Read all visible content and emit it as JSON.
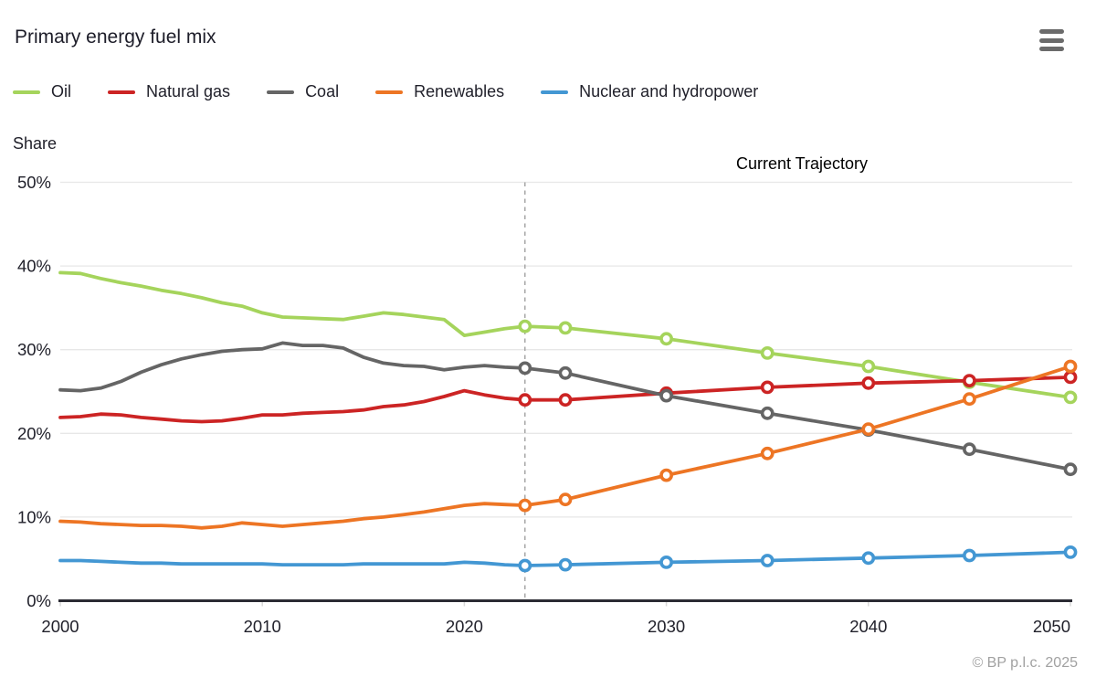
{
  "header": {
    "title": "Primary energy fuel mix"
  },
  "menu": {
    "icon": "hamburger-icon"
  },
  "axis": {
    "y_title": "Share"
  },
  "annotation": {
    "label": "Current Trajectory"
  },
  "footer": {
    "copyright": "© BP p.l.c. 2025"
  },
  "chart_data": {
    "type": "line",
    "title": "Primary energy fuel mix",
    "ylabel": "Share",
    "xlabel": "",
    "ylim": [
      0,
      50
    ],
    "xlim": [
      2000,
      2050
    ],
    "grid": true,
    "legend_position": "top",
    "y_ticks": [
      {
        "value": 50,
        "label": "50%"
      },
      {
        "value": 40,
        "label": "40%"
      },
      {
        "value": 30,
        "label": "30%"
      },
      {
        "value": 20,
        "label": "20%"
      },
      {
        "value": 10,
        "label": "10%"
      },
      {
        "value": 0,
        "label": "0%"
      }
    ],
    "x_ticks": [
      {
        "value": 2000,
        "label": "2000"
      },
      {
        "value": 2010,
        "label": "2010"
      },
      {
        "value": 2020,
        "label": "2020"
      },
      {
        "value": 2030,
        "label": "2030"
      },
      {
        "value": 2040,
        "label": "2040"
      },
      {
        "value": 2050,
        "label": "2050"
      }
    ],
    "divider": {
      "year": 2023,
      "label": "Current Trajectory",
      "style": "dashed"
    },
    "history_years": [
      2000,
      2001,
      2002,
      2003,
      2004,
      2005,
      2006,
      2007,
      2008,
      2009,
      2010,
      2011,
      2012,
      2013,
      2014,
      2015,
      2016,
      2017,
      2018,
      2019,
      2020,
      2021,
      2022,
      2023
    ],
    "projection_years": [
      2023,
      2025,
      2030,
      2035,
      2040,
      2045,
      2050
    ],
    "series": [
      {
        "name": "Oil",
        "color": "#a5d45c",
        "history": [
          39.2,
          39.1,
          38.5,
          38.0,
          37.6,
          37.1,
          36.7,
          36.2,
          35.6,
          35.2,
          34.4,
          33.9,
          33.8,
          33.7,
          33.6,
          34.0,
          34.4,
          34.2,
          33.9,
          33.6,
          31.7,
          32.1,
          32.5,
          32.8
        ],
        "projection": [
          32.8,
          32.6,
          31.3,
          29.6,
          28.0,
          26.1,
          24.3
        ]
      },
      {
        "name": "Natural gas",
        "color": "#cc2424",
        "history": [
          21.9,
          22.0,
          22.3,
          22.2,
          21.9,
          21.7,
          21.5,
          21.4,
          21.5,
          21.8,
          22.2,
          22.2,
          22.4,
          22.5,
          22.6,
          22.8,
          23.2,
          23.4,
          23.8,
          24.4,
          25.1,
          24.6,
          24.2,
          24.0
        ],
        "projection": [
          24.0,
          24.0,
          24.8,
          25.5,
          26.0,
          26.3,
          26.7
        ]
      },
      {
        "name": "Coal",
        "color": "#656565",
        "history": [
          25.2,
          25.1,
          25.4,
          26.2,
          27.3,
          28.2,
          28.9,
          29.4,
          29.8,
          30.0,
          30.1,
          30.8,
          30.5,
          30.5,
          30.2,
          29.1,
          28.4,
          28.1,
          28.0,
          27.6,
          27.9,
          28.1,
          27.9,
          27.8
        ],
        "projection": [
          27.8,
          27.2,
          24.5,
          22.4,
          20.4,
          18.1,
          15.7
        ]
      },
      {
        "name": "Renewables",
        "color": "#ed7524",
        "history": [
          9.5,
          9.4,
          9.2,
          9.1,
          9.0,
          9.0,
          8.9,
          8.7,
          8.9,
          9.3,
          9.1,
          8.9,
          9.1,
          9.3,
          9.5,
          9.8,
          10.0,
          10.3,
          10.6,
          11.0,
          11.4,
          11.6,
          11.5,
          11.4
        ],
        "projection": [
          11.4,
          12.1,
          15.0,
          17.6,
          20.5,
          24.1,
          28.0
        ]
      },
      {
        "name": "Nuclear and hydropower",
        "color": "#4397d3",
        "history": [
          4.8,
          4.8,
          4.7,
          4.6,
          4.5,
          4.5,
          4.4,
          4.4,
          4.4,
          4.4,
          4.4,
          4.3,
          4.3,
          4.3,
          4.3,
          4.4,
          4.4,
          4.4,
          4.4,
          4.4,
          4.6,
          4.5,
          4.3,
          4.2
        ],
        "projection": [
          4.2,
          4.3,
          4.6,
          4.8,
          5.1,
          5.4,
          5.8
        ]
      }
    ]
  }
}
